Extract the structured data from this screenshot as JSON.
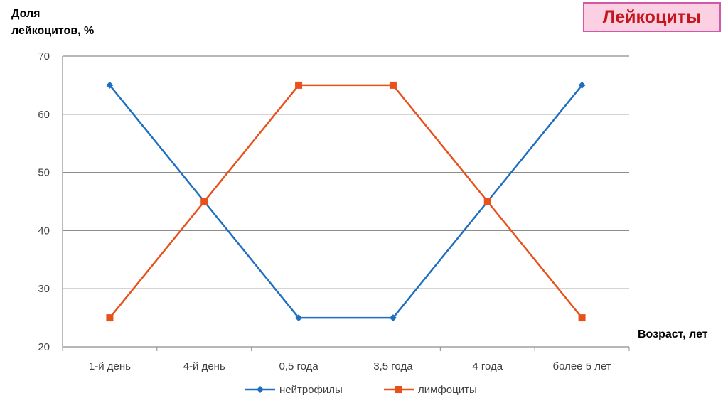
{
  "header": {
    "title": "Лейкоциты"
  },
  "chart_data": {
    "type": "line",
    "title": "",
    "ylabel": "Доля лейкоцитов, %",
    "xlabel": "Возраст, лет",
    "categories": [
      "1-й день",
      "4-й день",
      "0,5 года",
      "3,5 года",
      "4 года",
      "более 5 лет"
    ],
    "ylim": [
      20,
      70
    ],
    "yticks": [
      20,
      30,
      40,
      50,
      60,
      70
    ],
    "grid": true,
    "legend": "bottom",
    "series": [
      {
        "name": "нейтрофилы",
        "values": [
          65,
          45,
          25,
          25,
          45,
          65
        ],
        "color": "#1f6fc0",
        "marker": "diamond"
      },
      {
        "name": "лимфоциты",
        "values": [
          25,
          45,
          65,
          65,
          45,
          25
        ],
        "color": "#e8501c",
        "marker": "square"
      }
    ]
  }
}
